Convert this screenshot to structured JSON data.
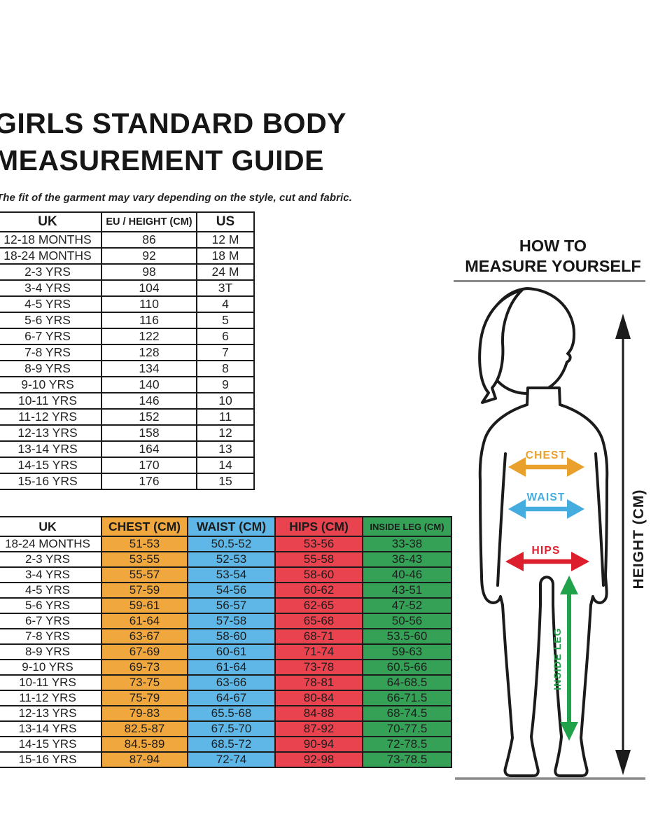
{
  "header": {
    "title_line1": "GIRLS STANDARD BODY",
    "title_line2": "MEASUREMENT GUIDE",
    "subtitle": "The fit of the garment may vary depending on the style, cut and fabric."
  },
  "size_table": {
    "headers": [
      "UK",
      "EU / HEIGHT (CM)",
      "US"
    ],
    "rows": [
      [
        "12-18 MONTHS",
        "86",
        "12 M"
      ],
      [
        "18-24 MONTHS",
        "92",
        "18 M"
      ],
      [
        "2-3 YRS",
        "98",
        "24 M"
      ],
      [
        "3-4 YRS",
        "104",
        "3T"
      ],
      [
        "4-5 YRS",
        "110",
        "4"
      ],
      [
        "5-6 YRS",
        "116",
        "5"
      ],
      [
        "6-7 YRS",
        "122",
        "6"
      ],
      [
        "7-8 YRS",
        "128",
        "7"
      ],
      [
        "8-9 YRS",
        "134",
        "8"
      ],
      [
        "9-10 YRS",
        "140",
        "9"
      ],
      [
        "10-11 YRS",
        "146",
        "10"
      ],
      [
        "11-12 YRS",
        "152",
        "11"
      ],
      [
        "12-13 YRS",
        "158",
        "12"
      ],
      [
        "13-14 YRS",
        "164",
        "13"
      ],
      [
        "14-15 YRS",
        "170",
        "14"
      ],
      [
        "15-16 YRS",
        "176",
        "15"
      ]
    ]
  },
  "body_table": {
    "headers": [
      "UK",
      "CHEST (CM)",
      "WAIST (CM)",
      "HIPS (CM)",
      "INSIDE LEG (CM)"
    ],
    "column_colors": [
      "#FFFFFF",
      "#F0A73E",
      "#5EB7E7",
      "#E8434E",
      "#35A157"
    ],
    "rows": [
      [
        "18-24 MONTHS",
        "51-53",
        "50.5-52",
        "53-56",
        "33-38"
      ],
      [
        "2-3 YRS",
        "53-55",
        "52-53",
        "55-58",
        "36-43"
      ],
      [
        "3-4 YRS",
        "55-57",
        "53-54",
        "58-60",
        "40-46"
      ],
      [
        "4-5 YRS",
        "57-59",
        "54-56",
        "60-62",
        "43-51"
      ],
      [
        "5-6 YRS",
        "59-61",
        "56-57",
        "62-65",
        "47-52"
      ],
      [
        "6-7 YRS",
        "61-64",
        "57-58",
        "65-68",
        "50-56"
      ],
      [
        "7-8 YRS",
        "63-67",
        "58-60",
        "68-71",
        "53.5-60"
      ],
      [
        "8-9 YRS",
        "67-69",
        "60-61",
        "71-74",
        "59-63"
      ],
      [
        "9-10 YRS",
        "69-73",
        "61-64",
        "73-78",
        "60.5-66"
      ],
      [
        "10-11 YRS",
        "73-75",
        "63-66",
        "78-81",
        "64-68.5"
      ],
      [
        "11-12 YRS",
        "75-79",
        "64-67",
        "80-84",
        "66-71.5"
      ],
      [
        "12-13 YRS",
        "79-83",
        "65.5-68",
        "84-88",
        "68-74.5"
      ],
      [
        "13-14 YRS",
        "82.5-87",
        "67.5-70",
        "87-92",
        "70-77.5"
      ],
      [
        "14-15 YRS",
        "84.5-89",
        "68.5-72",
        "90-94",
        "72-78.5"
      ],
      [
        "15-16 YRS",
        "87-94",
        "72-74",
        "92-98",
        "73-78.5"
      ]
    ]
  },
  "measure_panel": {
    "heading_line1": "HOW TO",
    "heading_line2": "MEASURE YOURSELF",
    "labels": {
      "chest": "CHEST",
      "waist": "WAIST",
      "hips": "HIPS",
      "inside_leg": "INSIDE LEG",
      "height": "HEIGHT (CM)"
    },
    "colors": {
      "chest": "#E9A02C",
      "waist": "#45ACE0",
      "hips": "#DD1F2D",
      "inside_leg": "#1FA24A",
      "height": "#1B1B1B"
    }
  }
}
